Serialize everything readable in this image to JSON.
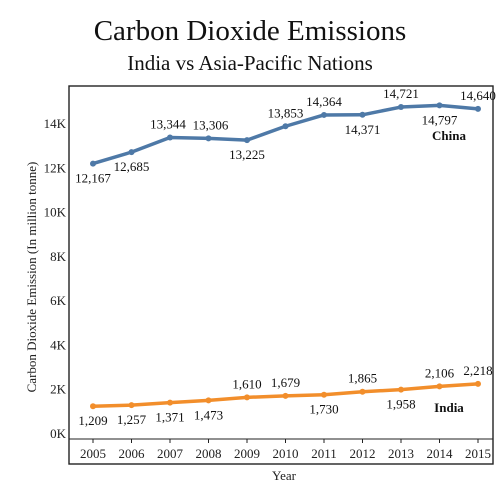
{
  "title": "Carbon Dioxide Emissions",
  "subtitle": "India vs Asia-Pacific Nations",
  "chart_data": {
    "type": "line",
    "title": "Carbon Dioxide Emissions",
    "subtitle": "India vs Asia-Pacific Nations",
    "xlabel": "Year",
    "ylabel": "Carbon Dioxide Emission (In million tonne)",
    "x": [
      2005,
      2006,
      2007,
      2008,
      2009,
      2010,
      2011,
      2012,
      2013,
      2014,
      2015
    ],
    "y_ticks": [
      0,
      2000,
      4000,
      6000,
      8000,
      10000,
      12000,
      14000
    ],
    "y_tick_labels": [
      "0K",
      "2K",
      "4K",
      "6K",
      "8K",
      "10K",
      "12K",
      "14K"
    ],
    "ylim": [
      0,
      15000
    ],
    "grid": false,
    "series": [
      {
        "name": "China",
        "color": "#4e79a7",
        "values": [
          12167,
          12685,
          13344,
          13306,
          13225,
          13853,
          14364,
          14371,
          14721,
          14797,
          14640
        ],
        "labels": [
          "12,167",
          "12,685",
          "13,344",
          "13,306",
          "13,225",
          "13,853",
          "14,364",
          "14,371",
          "14,721",
          "14,797",
          "14,640"
        ]
      },
      {
        "name": "India",
        "color": "#f28e2b",
        "values": [
          1209,
          1257,
          1371,
          1473,
          1610,
          1679,
          1730,
          1865,
          1958,
          2106,
          2218
        ],
        "labels": [
          "1,209",
          "1,257",
          "1,371",
          "1,473",
          "1,610",
          "1,679",
          "1,730",
          "1,865",
          "1,958",
          "2,106",
          "2,218"
        ]
      }
    ]
  }
}
